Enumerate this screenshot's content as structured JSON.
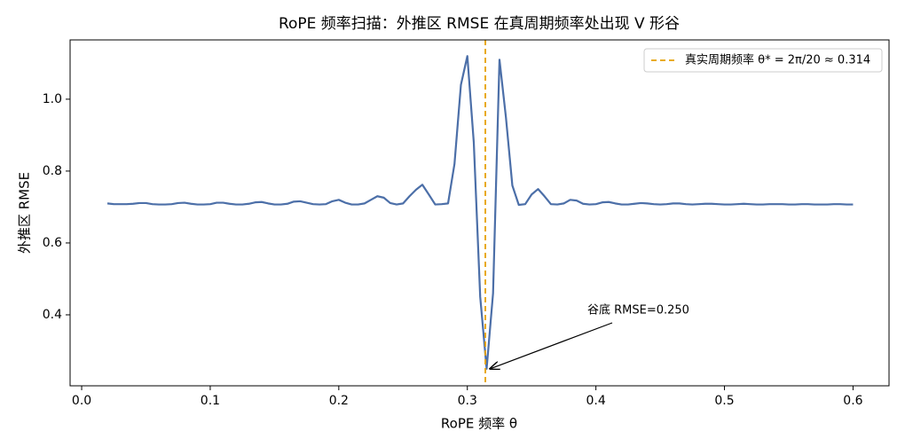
{
  "chart_data": {
    "type": "line",
    "title": "RoPE 频率扫描：外推区 RMSE 在真周期频率处出现 V 形谷",
    "x_label": "RoPE 频率 θ",
    "y_label": "外推区 RMSE",
    "xlim": [
      -0.009,
      0.628
    ],
    "ylim": [
      0.2025,
      1.165
    ],
    "xticks": [
      {
        "value": 0,
        "label": "0.0"
      },
      0.1,
      0.2,
      0.3,
      0.4,
      0.5,
      0.6
    ],
    "yticks": [
      0.4,
      0.6,
      0.8,
      {
        "value": 1,
        "label": "1.0"
      }
    ],
    "grid": false,
    "legend": "upper right",
    "x": [
      0.02,
      0.025,
      0.03,
      0.035,
      0.04,
      0.045,
      0.05,
      0.055,
      0.06,
      0.065,
      0.07,
      0.075,
      0.08,
      0.085,
      0.09,
      0.095,
      0.1,
      0.105,
      0.11,
      0.115,
      0.12,
      0.125,
      0.13,
      0.135,
      0.14,
      0.145,
      0.15,
      0.155,
      0.16,
      0.165,
      0.17,
      0.175,
      0.18,
      0.185,
      0.19,
      0.195,
      0.2,
      0.205,
      0.21,
      0.215,
      0.22,
      0.225,
      0.23,
      0.235,
      0.24,
      0.245,
      0.25,
      0.255,
      0.26,
      0.265,
      0.27,
      0.275,
      0.28,
      0.285,
      0.29,
      0.295,
      0.3,
      0.305,
      0.31,
      0.315,
      0.32,
      0.325,
      0.33,
      0.335,
      0.34,
      0.345,
      0.35,
      0.355,
      0.36,
      0.365,
      0.37,
      0.375,
      0.38,
      0.385,
      0.39,
      0.395,
      0.4,
      0.405,
      0.41,
      0.415,
      0.42,
      0.425,
      0.43,
      0.435,
      0.44,
      0.445,
      0.45,
      0.455,
      0.46,
      0.465,
      0.47,
      0.475,
      0.48,
      0.485,
      0.49,
      0.495,
      0.5,
      0.505,
      0.51,
      0.515,
      0.52,
      0.525,
      0.53,
      0.535,
      0.54,
      0.545,
      0.55,
      0.555,
      0.56,
      0.565,
      0.57,
      0.575,
      0.58,
      0.585,
      0.59,
      0.595,
      0.6
    ],
    "series": [
      {
        "color": "#4c6fa8",
        "values": [
          0.71,
          0.708,
          0.708,
          0.708,
          0.709,
          0.711,
          0.711,
          0.708,
          0.707,
          0.707,
          0.708,
          0.711,
          0.712,
          0.709,
          0.707,
          0.707,
          0.708,
          0.712,
          0.712,
          0.709,
          0.707,
          0.707,
          0.709,
          0.713,
          0.714,
          0.71,
          0.707,
          0.707,
          0.709,
          0.715,
          0.716,
          0.712,
          0.708,
          0.707,
          0.708,
          0.716,
          0.72,
          0.712,
          0.707,
          0.707,
          0.71,
          0.72,
          0.73,
          0.726,
          0.711,
          0.707,
          0.71,
          0.73,
          0.748,
          0.762,
          0.735,
          0.707,
          0.708,
          0.71,
          0.82,
          1.04,
          1.12,
          0.88,
          0.45,
          0.25,
          0.46,
          1.11,
          0.95,
          0.76,
          0.706,
          0.708,
          0.735,
          0.75,
          0.73,
          0.708,
          0.707,
          0.71,
          0.72,
          0.718,
          0.709,
          0.707,
          0.708,
          0.713,
          0.714,
          0.71,
          0.707,
          0.707,
          0.709,
          0.711,
          0.71,
          0.708,
          0.707,
          0.708,
          0.71,
          0.71,
          0.708,
          0.707,
          0.708,
          0.709,
          0.709,
          0.708,
          0.707,
          0.707,
          0.708,
          0.709,
          0.708,
          0.707,
          0.707,
          0.708,
          0.708,
          0.708,
          0.707,
          0.707,
          0.708,
          0.708,
          0.707,
          0.707,
          0.707,
          0.708,
          0.708,
          0.707,
          0.707
        ]
      }
    ],
    "vline": {
      "x": 0.314,
      "label": "真实周期频率 θ* = 2π/20 ≈ 0.314",
      "color": "#e6a100"
    },
    "annotation": "谷底 RMSE=0.250"
  }
}
